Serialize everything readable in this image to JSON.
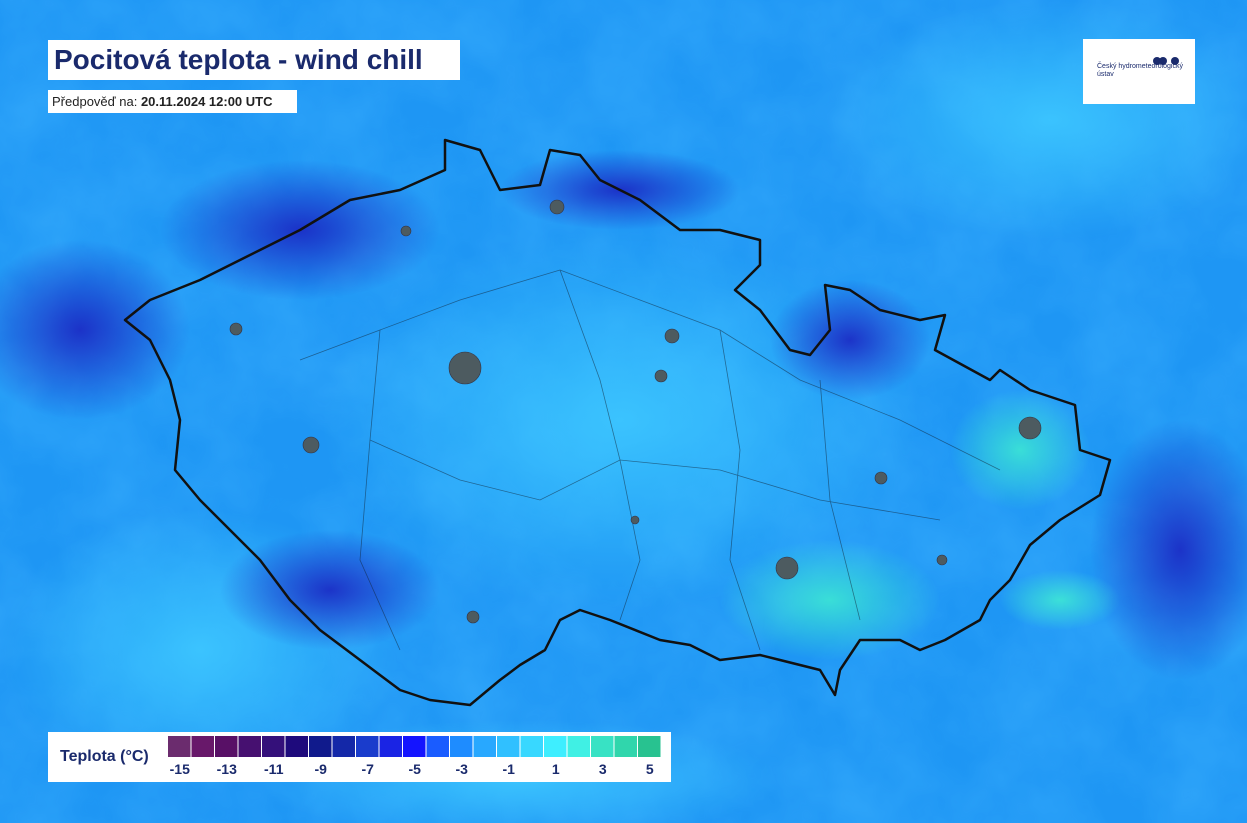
{
  "header": {
    "title": "Pocitová teplota - wind chill",
    "subtitle_label": "Předpověď na:",
    "subtitle_date": "20.11.2024 12:00 UTC"
  },
  "logo": {
    "text": "Český hydrometeorologický ústav"
  },
  "legend": {
    "title": "Teplota (°C)",
    "colors": [
      "#6b2c6e",
      "#68186a",
      "#581066",
      "#461070",
      "#34107a",
      "#1e0a7c",
      "#101a8c",
      "#1428a8",
      "#1a3ccc",
      "#1a24e4",
      "#1414ff",
      "#1a5cff",
      "#1e8cff",
      "#28a8ff",
      "#30c0ff",
      "#38d8ff",
      "#3eeeff",
      "#40f0e4",
      "#38e2c4",
      "#30d6ac",
      "#28c290"
    ],
    "ticks": [
      -15,
      -13,
      -11,
      -9,
      -7,
      -5,
      -3,
      -1,
      1,
      3,
      5
    ]
  }
}
